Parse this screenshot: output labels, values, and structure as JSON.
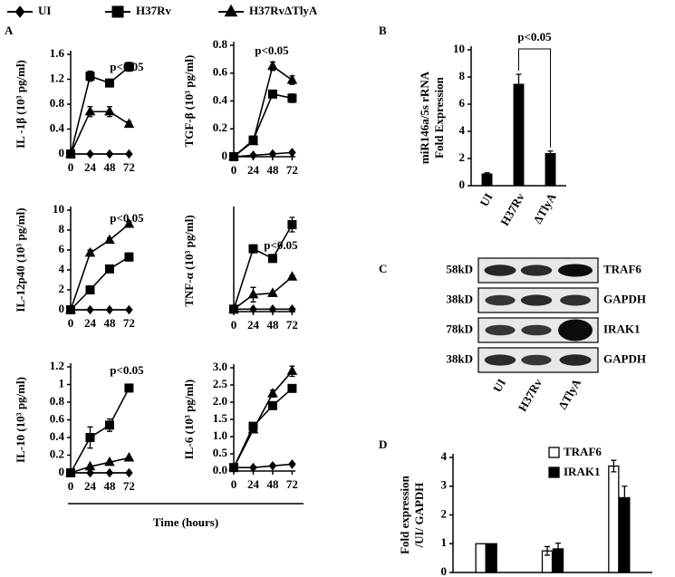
{
  "legend": [
    {
      "name": "UI",
      "marker": "diamond"
    },
    {
      "name": "H37Rv",
      "marker": "square"
    },
    {
      "name": "H37RvΔTlyA",
      "marker": "triangle"
    }
  ],
  "panel_labels": [
    "A",
    "B",
    "C",
    "D"
  ],
  "x_label": "Time (hours)",
  "chart_data": [
    {
      "type": "line",
      "ylabel": "IL -1β (10³ pg/ml)",
      "annotation": "p<0.05",
      "x": [
        0,
        24,
        48,
        72
      ],
      "xlim": [
        0,
        76
      ],
      "xticks": [
        0,
        24,
        48,
        72
      ],
      "ylim": [
        0,
        1.6
      ],
      "yticks": [
        0,
        0.4,
        0.8,
        1.2,
        1.6
      ],
      "series": [
        {
          "marker": "diamond",
          "values": [
            0,
            0,
            0,
            0
          ]
        },
        {
          "marker": "square",
          "values": [
            0,
            1.25,
            1.14,
            1.4
          ],
          "errors": [
            0,
            0.08,
            0.03,
            0.07
          ]
        },
        {
          "marker": "triangle",
          "values": [
            0,
            0.68,
            0.68,
            0.48
          ],
          "errors": [
            0,
            0.08,
            0.08,
            0.04
          ]
        }
      ]
    },
    {
      "type": "line",
      "ylabel": "TGF-β (10³ pg/ml)",
      "annotation": "p<0.05",
      "x": [
        0,
        24,
        48,
        72
      ],
      "xlim": [
        0,
        76
      ],
      "xticks": [
        0,
        24,
        48,
        72
      ],
      "ylim": [
        0,
        0.8
      ],
      "yticks": [
        0,
        0.2,
        0.4,
        0.6,
        0.8
      ],
      "series": [
        {
          "marker": "diamond",
          "values": [
            0,
            0.01,
            0.02,
            0.03
          ]
        },
        {
          "marker": "square",
          "values": [
            0,
            0.12,
            0.45,
            0.42
          ],
          "errors": [
            0,
            0.01,
            0.02,
            0.03
          ]
        },
        {
          "marker": "triangle",
          "values": [
            0,
            0.11,
            0.65,
            0.55
          ],
          "errors": [
            0,
            0.01,
            0.03,
            0.03
          ]
        }
      ]
    },
    {
      "type": "line",
      "ylabel": "IL-12p40 (10³ pg/ml)",
      "annotation": "p<0.05",
      "x": [
        0,
        24,
        48,
        72
      ],
      "xlim": [
        0,
        76
      ],
      "xticks": [
        0,
        24,
        48,
        72
      ],
      "ylim": [
        0,
        10
      ],
      "yticks": [
        0,
        2,
        4,
        6,
        8,
        10
      ],
      "series": [
        {
          "marker": "diamond",
          "values": [
            0,
            0,
            0,
            0
          ]
        },
        {
          "marker": "square",
          "values": [
            0,
            2,
            4.1,
            5.3
          ],
          "errors": [
            0,
            0.3,
            0.3,
            0.4
          ]
        },
        {
          "marker": "triangle",
          "values": [
            0,
            5.7,
            7,
            8.6
          ],
          "errors": [
            0,
            0.3,
            0.2,
            0.2
          ]
        }
      ]
    },
    {
      "type": "line",
      "ylabel": "TNF-α (10³ pg/ml)",
      "annotation": "p<0.05",
      "x": [
        0,
        24,
        48,
        72
      ],
      "xlim": [
        0,
        76
      ],
      "xticks": [
        0,
        24,
        48,
        72
      ],
      "ylim": [
        0,
        2.1
      ],
      "series": [
        {
          "marker": "diamond",
          "values": [
            0.05,
            0.05,
            0.05,
            0.05
          ]
        },
        {
          "marker": "square",
          "values": [
            0.05,
            1.3,
            1.1,
            1.8
          ],
          "errors": [
            0,
            0.08,
            0.05,
            0.15
          ]
        },
        {
          "marker": "triangle",
          "values": [
            0.05,
            0.35,
            0.38,
            0.72
          ],
          "errors": [
            0,
            0.15,
            0.03,
            0.03
          ]
        }
      ]
    },
    {
      "type": "line",
      "ylabel": "IL-10 (10³ pg/ml)",
      "annotation": "p<0.05",
      "x": [
        0,
        24,
        48,
        72
      ],
      "xlim": [
        0,
        76
      ],
      "xticks": [
        0,
        24,
        48,
        72
      ],
      "ylim": [
        0,
        1.2
      ],
      "yticks": [
        0,
        0.2,
        0.4,
        0.6,
        0.8,
        1.0,
        1.2
      ],
      "series": [
        {
          "marker": "diamond",
          "values": [
            0,
            0,
            0,
            0
          ]
        },
        {
          "marker": "square",
          "values": [
            0,
            0.4,
            0.54,
            0.96
          ],
          "errors": [
            0,
            0.12,
            0.07,
            0.02
          ]
        },
        {
          "marker": "triangle",
          "values": [
            0,
            0.07,
            0.12,
            0.17
          ],
          "errors": [
            0,
            0.01,
            0.01,
            0.01
          ]
        }
      ]
    },
    {
      "type": "line",
      "ylabel": "IL-6 (10³ pg/ml)",
      "x": [
        0,
        24,
        48,
        72
      ],
      "xlim": [
        0,
        76
      ],
      "xticks": [
        0,
        24,
        48,
        72
      ],
      "ylim": [
        0,
        3.0
      ],
      "yticks": [
        {
          "value": 0,
          "label": "0.0"
        },
        0.5,
        {
          "value": 1,
          "label": "1.0"
        },
        1.5,
        {
          "value": 2,
          "label": "2.0"
        },
        2.5,
        {
          "value": 3,
          "label": "3.0"
        }
      ],
      "series": [
        {
          "marker": "diamond",
          "values": [
            0.1,
            0.1,
            0.15,
            0.2
          ]
        },
        {
          "marker": "square",
          "values": [
            0.1,
            1.3,
            1.9,
            2.4
          ],
          "errors": [
            0,
            0.08,
            0.1,
            0.1
          ]
        },
        {
          "marker": "triangle",
          "values": [
            0.1,
            1.2,
            2.25,
            2.9
          ],
          "errors": [
            0,
            0.08,
            0.1,
            0.15
          ]
        }
      ]
    },
    {
      "type": "bar",
      "ylabel": [
        "miR146a/5s rRNA",
        "Fold Expression"
      ],
      "annotation": "p<0.05",
      "categories": [
        "UI",
        "H37Rv",
        "ΔTlyA"
      ],
      "values": [
        0.9,
        7.5,
        2.4
      ],
      "errors": [
        0.05,
        0.7,
        0.15
      ],
      "color": "#000000",
      "ylim": [
        0,
        10
      ],
      "yticks": [
        0,
        2,
        4,
        6,
        8,
        10
      ]
    },
    {
      "type": "grouped_bar",
      "ylabel": [
        "Fold expression",
        "/UI/ GAPDH"
      ],
      "categories": [
        null,
        null,
        null
      ],
      "ylim": [
        0,
        4
      ],
      "yticks": [
        0,
        1,
        2,
        3,
        4
      ],
      "series": [
        {
          "name": "TRAF6",
          "color": "#ffffff",
          "values": [
            1,
            0.75,
            3.7
          ],
          "errors": [
            0,
            0.15,
            0.2
          ]
        },
        {
          "name": "IRAK1",
          "color": "#000000",
          "values": [
            1,
            0.82,
            2.6
          ],
          "errors": [
            0,
            0.2,
            0.4
          ]
        }
      ]
    }
  ],
  "blot": {
    "sizes": [
      "58kD",
      "38kD",
      "78kD",
      "38kD"
    ],
    "proteins": [
      "TRAF6",
      "GAPDH",
      "IRAK1",
      "GAPDH"
    ],
    "lanes": [
      "UI",
      "H37Rv",
      "ΔTlyA"
    ]
  }
}
